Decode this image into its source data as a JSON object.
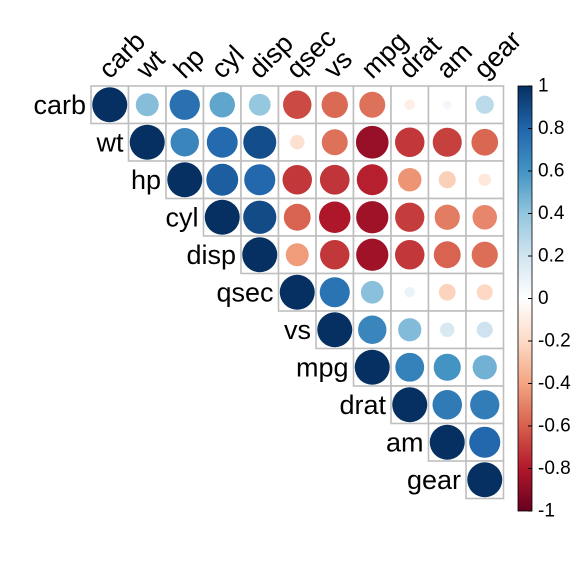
{
  "chart_data": {
    "type": "heatmap",
    "variables": [
      "carb",
      "wt",
      "hp",
      "cyl",
      "disp",
      "qsec",
      "vs",
      "mpg",
      "drat",
      "am",
      "gear"
    ],
    "layout": "upper-triangle",
    "glyph": "circle",
    "values": [
      [
        1.0,
        0.43,
        0.75,
        0.53,
        0.39,
        -0.66,
        -0.57,
        -0.55,
        -0.09,
        0.06,
        0.27
      ],
      [
        0.43,
        1.0,
        0.66,
        0.78,
        0.89,
        -0.17,
        -0.55,
        -0.87,
        -0.71,
        -0.69,
        -0.58
      ],
      [
        0.75,
        0.66,
        1.0,
        0.83,
        0.79,
        -0.71,
        -0.72,
        -0.78,
        -0.45,
        -0.24,
        -0.13
      ],
      [
        0.53,
        0.78,
        0.83,
        1.0,
        0.9,
        -0.59,
        -0.81,
        -0.85,
        -0.7,
        -0.52,
        -0.49
      ],
      [
        0.39,
        0.89,
        0.79,
        0.9,
        1.0,
        -0.43,
        -0.71,
        -0.85,
        -0.71,
        -0.59,
        -0.56
      ],
      [
        -0.66,
        -0.17,
        -0.71,
        -0.59,
        -0.43,
        1.0,
        0.74,
        0.42,
        0.09,
        -0.23,
        -0.21
      ],
      [
        -0.57,
        -0.55,
        -0.72,
        -0.81,
        -0.71,
        0.74,
        1.0,
        0.66,
        0.44,
        0.17,
        0.21
      ],
      [
        -0.55,
        -0.87,
        -0.78,
        -0.85,
        -0.85,
        0.42,
        0.66,
        1.0,
        0.68,
        0.6,
        0.48
      ],
      [
        -0.09,
        -0.71,
        -0.45,
        -0.7,
        -0.71,
        0.09,
        0.44,
        0.68,
        1.0,
        0.71,
        0.7
      ],
      [
        0.06,
        -0.69,
        -0.24,
        -0.52,
        -0.59,
        -0.23,
        0.17,
        0.6,
        0.71,
        1.0,
        0.79
      ],
      [
        0.27,
        -0.58,
        -0.13,
        -0.49,
        -0.56,
        -0.21,
        0.21,
        0.48,
        0.7,
        0.79,
        1.0
      ]
    ],
    "colorbar": {
      "range": [
        -1,
        1
      ],
      "ticks": [
        1,
        0.8,
        0.6,
        0.4,
        0.2,
        0,
        -0.2,
        -0.4,
        -0.6,
        -0.8,
        -1
      ],
      "tick_labels": [
        "1",
        "0.8",
        "0.6",
        "0.4",
        "0.2",
        "0",
        "-0.2",
        "-0.4",
        "-0.6",
        "-0.8",
        "-1"
      ],
      "colors": [
        "#67001F",
        "#B2182B",
        "#D6604D",
        "#F4A582",
        "#FDDBC7",
        "#FFFFFF",
        "#D1E5F0",
        "#92C5DE",
        "#4393C3",
        "#2166AC",
        "#053061"
      ]
    },
    "grid_color": "#BEBEBE"
  }
}
